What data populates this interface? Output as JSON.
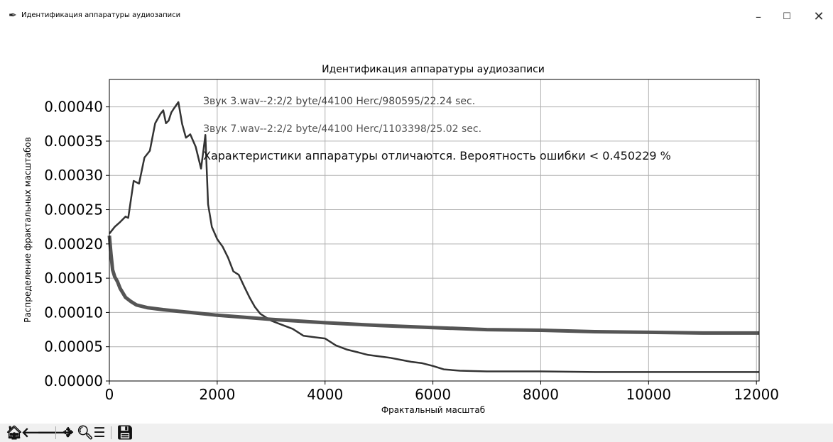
{
  "window": {
    "title": "Идентификация аппаратуры аудиозаписи",
    "icon": "feather-icon",
    "controls": {
      "minimize": "–",
      "maximize": "☐",
      "close": "✕"
    }
  },
  "chart_data": {
    "type": "line",
    "title": "Идентификация аппаратуры аудиозаписи",
    "xlabel": "Фрактальный масштаб",
    "ylabel": "Распределение фрактальных масштабов",
    "xlim": [
      0,
      12050
    ],
    "ylim": [
      0,
      0.00044
    ],
    "xticks": [
      "0",
      "2000",
      "4000",
      "6000",
      "8000",
      "10000",
      "12000"
    ],
    "yticks": [
      "0.00000",
      "0.00005",
      "0.00010",
      "0.00015",
      "0.00020",
      "0.00025",
      "0.00030",
      "0.00035",
      "0.00040"
    ],
    "grid": true,
    "annotations": [
      "Звук 3.wav--2:2/2 byte/44100 Herc/980595/22.24 sec.",
      "Звук 7.wav--2:2/2 byte/44100 Herc/1103398/25.02 sec.",
      "Характеристики аппаратуры отличаются. Вероятность ошибки  <  0.450229 %"
    ],
    "series": [
      {
        "color": "#333333",
        "x": [
          0,
          100,
          200,
          300,
          350,
          450,
          550,
          650,
          750,
          850,
          950,
          1000,
          1050,
          1100,
          1150,
          1200,
          1280,
          1350,
          1420,
          1500,
          1600,
          1700,
          1750,
          1780,
          1830,
          1900,
          2000,
          2100,
          2200,
          2300,
          2400,
          2500,
          2600,
          2700,
          2800,
          3000,
          3200,
          3400,
          3600,
          3800,
          4000,
          4200,
          4400,
          4600,
          4800,
          5000,
          5200,
          5400,
          5600,
          5800,
          6000,
          6200,
          6500,
          7000,
          8000,
          9000,
          10000,
          11000,
          12050
        ],
        "y": [
          0.000215,
          0.000225,
          0.000232,
          0.00024,
          0.000238,
          0.000292,
          0.000288,
          0.000326,
          0.000336,
          0.000376,
          0.00039,
          0.000395,
          0.000376,
          0.00038,
          0.000392,
          0.000398,
          0.000407,
          0.000375,
          0.000355,
          0.00036,
          0.000342,
          0.00031,
          0.00034,
          0.000359,
          0.000258,
          0.000225,
          0.000207,
          0.000196,
          0.00018,
          0.00016,
          0.000155,
          0.000138,
          0.000122,
          0.000108,
          9.8e-05,
          8.8e-05,
          8.2e-05,
          7.6e-05,
          6.6e-05,
          6.4e-05,
          6.2e-05,
          5.2e-05,
          4.6e-05,
          4.2e-05,
          3.8e-05,
          3.6e-05,
          3.4e-05,
          3.1e-05,
          2.8e-05,
          2.6e-05,
          2.2e-05,
          1.7e-05,
          1.5e-05,
          1.4e-05,
          1.4e-05,
          1.3e-05,
          1.3e-05,
          1.3e-05,
          1.3e-05
        ]
      },
      {
        "color": "#555555",
        "x": [
          0,
          30,
          60,
          100,
          150,
          200,
          300,
          400,
          500,
          700,
          1000,
          1500,
          2000,
          3000,
          4000,
          5000,
          6000,
          7000,
          8000,
          9000,
          10000,
          11000,
          12050
        ],
        "y": [
          0.000212,
          0.000185,
          0.000162,
          0.000152,
          0.000145,
          0.000135,
          0.000122,
          0.000116,
          0.000111,
          0.000107,
          0.000104,
          0.0001,
          9.6e-05,
          9e-05,
          8.5e-05,
          8.1e-05,
          7.8e-05,
          7.5e-05,
          7.4e-05,
          7.2e-05,
          7.1e-05,
          7e-05,
          7e-05
        ]
      }
    ]
  },
  "toolbar": {
    "home": "🏠︎",
    "back": "🡐",
    "forward": "🡒",
    "pan": "✥",
    "zoom": "🔍︎",
    "configure": "☰",
    "save": "💾︎"
  }
}
